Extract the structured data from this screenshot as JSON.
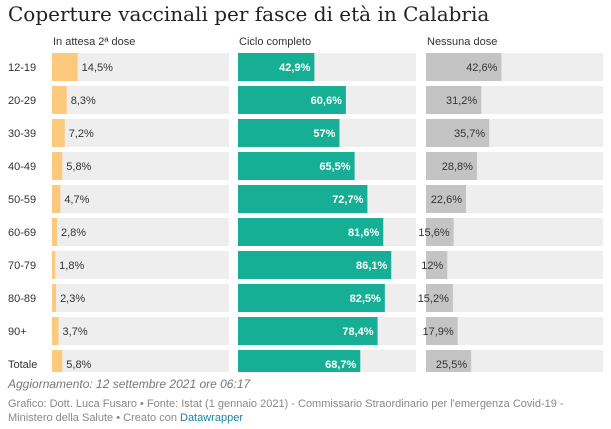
{
  "title": "Coperture vaccinali per fasce di età in Calabria",
  "note": "Aggiornamento: 12 settembre 2021 ore 06:17",
  "footer": {
    "source": "Grafico: Dott. Luca Fusaro • Fonte: Istat (1 gennaio 2021) - Commissario Straordinario per l'emergenza Covid-19 - Ministero della Salute • Creato con ",
    "tool": "Datawrapper"
  },
  "colors": {
    "background_bar": "#eeeeee",
    "in_attesa": "#fcc97d",
    "ciclo_completo": "#16ae95",
    "nessuna_dose": "#c4c4c4"
  },
  "chart_data": {
    "type": "bar",
    "orientation": "horizontal",
    "layout": "small-multiples",
    "categories": [
      "12-19",
      "20-29",
      "30-39",
      "40-49",
      "50-59",
      "60-69",
      "70-79",
      "80-89",
      "90+",
      "Totale"
    ],
    "xlim": [
      0,
      100
    ],
    "value_suffix": "%",
    "decimal_separator": ",",
    "series": [
      {
        "name": "In attesa 2ª dose",
        "values": [
          14.5,
          8.3,
          7.2,
          5.8,
          4.7,
          2.8,
          1.8,
          2.3,
          3.7,
          5.8
        ]
      },
      {
        "name": "Ciclo completo",
        "values": [
          42.9,
          60.6,
          57,
          65.5,
          72.7,
          81.6,
          86.1,
          82.5,
          78.4,
          68.7
        ]
      },
      {
        "name": "Nessuna dose",
        "values": [
          42.6,
          31.2,
          35.7,
          28.8,
          22.6,
          15.6,
          12,
          15.2,
          17.9,
          25.5
        ]
      }
    ]
  }
}
